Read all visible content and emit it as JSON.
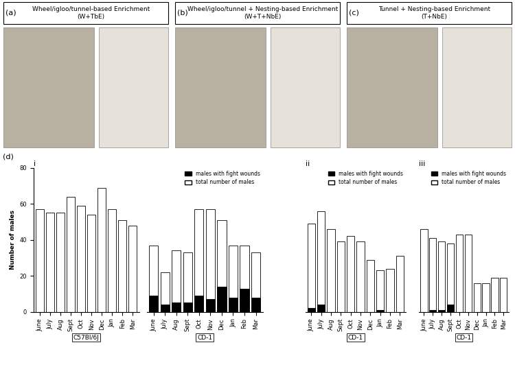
{
  "figure_label": "(d)",
  "panels": [
    {
      "label": "(a)",
      "title": "Wheel/igloo/tunnel-based Enrichment\n(W+TbE)"
    },
    {
      "label": "(b)",
      "title": "Wheel/igloo/tunnel + Nesting-based Enrichment\n(W+T+NbE)"
    },
    {
      "label": "(c)",
      "title": "Tunnel + Nesting-based Enrichment\n(T+NbE)"
    }
  ],
  "chart_data": [
    {
      "type": "bar",
      "title": "i",
      "ylabel": "Number of males",
      "xlabel": "C57Bl/6J",
      "categories": [
        "June",
        "July",
        "Aug",
        "Sept",
        "Oct",
        "Nov",
        "Dec",
        "Jan",
        "Feb",
        "Mar"
      ],
      "series": [
        {
          "name": "total number of males",
          "color": "#ffffff",
          "values": [
            57,
            55,
            55,
            64,
            59,
            54,
            69,
            57,
            51,
            48
          ]
        },
        {
          "name": "males with fight wounds",
          "color": "#000000",
          "values": [
            0,
            0,
            0,
            0,
            0,
            0,
            0,
            0,
            0,
            0
          ]
        }
      ],
      "ylim": [
        0,
        80
      ],
      "yticks": [
        0,
        20,
        40,
        60,
        80
      ]
    },
    {
      "type": "bar",
      "xlabel": "CD-1",
      "legend": "upper right",
      "tick_labels": "x",
      "categories": [
        "June",
        "July",
        "Aug",
        "Sept",
        "Oct",
        "Nov",
        "Dec",
        "Jan",
        "Feb",
        "Mar"
      ],
      "series": [
        {
          "name": "total number of males",
          "color": "#ffffff",
          "values": [
            37,
            22,
            34,
            33,
            57,
            57,
            51,
            37,
            37,
            33
          ]
        },
        {
          "name": "males with fight wounds",
          "color": "#000000",
          "values": [
            9,
            4,
            5,
            5,
            9,
            7,
            14,
            8,
            13,
            8
          ]
        }
      ],
      "ylim": [
        0,
        80
      ]
    },
    {
      "type": "bar",
      "title": "ii",
      "xlabel": "CD-1",
      "legend": "upper right",
      "tick_labels": "x",
      "categories": [
        "June",
        "July",
        "Aug",
        "Sept",
        "Oct",
        "Nov",
        "Dec",
        "Jan",
        "Feb",
        "Mar"
      ],
      "series": [
        {
          "name": "total number of males",
          "color": "#ffffff",
          "values": [
            49,
            56,
            46,
            39,
            42,
            39,
            29,
            23,
            24,
            31
          ]
        },
        {
          "name": "males with fight wounds",
          "color": "#000000",
          "values": [
            2,
            4,
            0,
            0,
            0,
            0,
            0,
            1,
            0,
            0
          ]
        }
      ],
      "ylim": [
        0,
        80
      ]
    },
    {
      "type": "bar",
      "title": "iii",
      "xlabel": "CD-1",
      "legend": "upper right",
      "tick_labels": "x",
      "categories": [
        "June",
        "July",
        "Aug",
        "Sept",
        "Oct",
        "Nov",
        "Dec",
        "Jan",
        "Feb",
        "Mar"
      ],
      "series": [
        {
          "name": "total number of males",
          "color": "#ffffff",
          "values": [
            46,
            41,
            39,
            38,
            43,
            43,
            16,
            16,
            19,
            19
          ]
        },
        {
          "name": "males with fight wounds",
          "color": "#000000",
          "values": [
            0,
            1,
            1,
            4,
            0,
            0,
            0,
            0,
            0,
            0
          ]
        }
      ],
      "ylim": [
        0,
        80
      ]
    }
  ]
}
